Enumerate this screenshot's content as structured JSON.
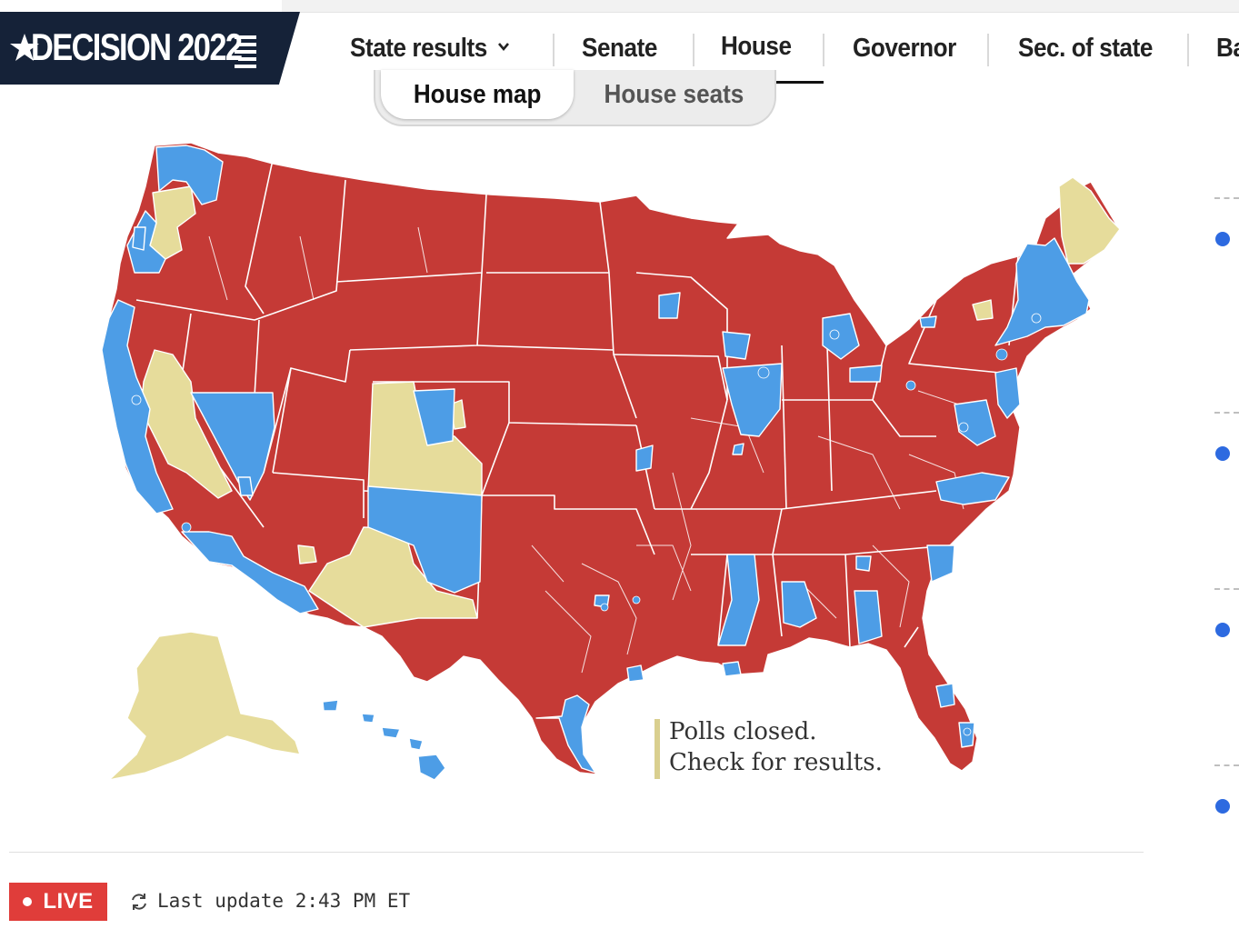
{
  "brand": {
    "logo_text": "DECISION 2022",
    "color_bg": "#152238"
  },
  "nav": {
    "items": [
      {
        "label": "State results",
        "has_dropdown": true
      },
      {
        "label": "Senate"
      },
      {
        "label": "House",
        "active": true
      },
      {
        "label": "Governor"
      },
      {
        "label": "Sec. of state"
      },
      {
        "label": "Ba"
      }
    ]
  },
  "toggle": {
    "active": "House map",
    "other": "House seats"
  },
  "map": {
    "colors": {
      "republican": "#c53a36",
      "democrat": "#4d9de6",
      "polls_closed": "#e6dc9b",
      "border": "#ffffff"
    },
    "legend": {
      "line1": "Polls closed.",
      "line2": "Check for results."
    }
  },
  "status": {
    "live_label": "LIVE",
    "last_update": "Last update 2:43 PM ET"
  },
  "icons": {
    "refresh": "refresh-icon",
    "chevron": "chevron-down-icon",
    "star": "star-icon"
  }
}
